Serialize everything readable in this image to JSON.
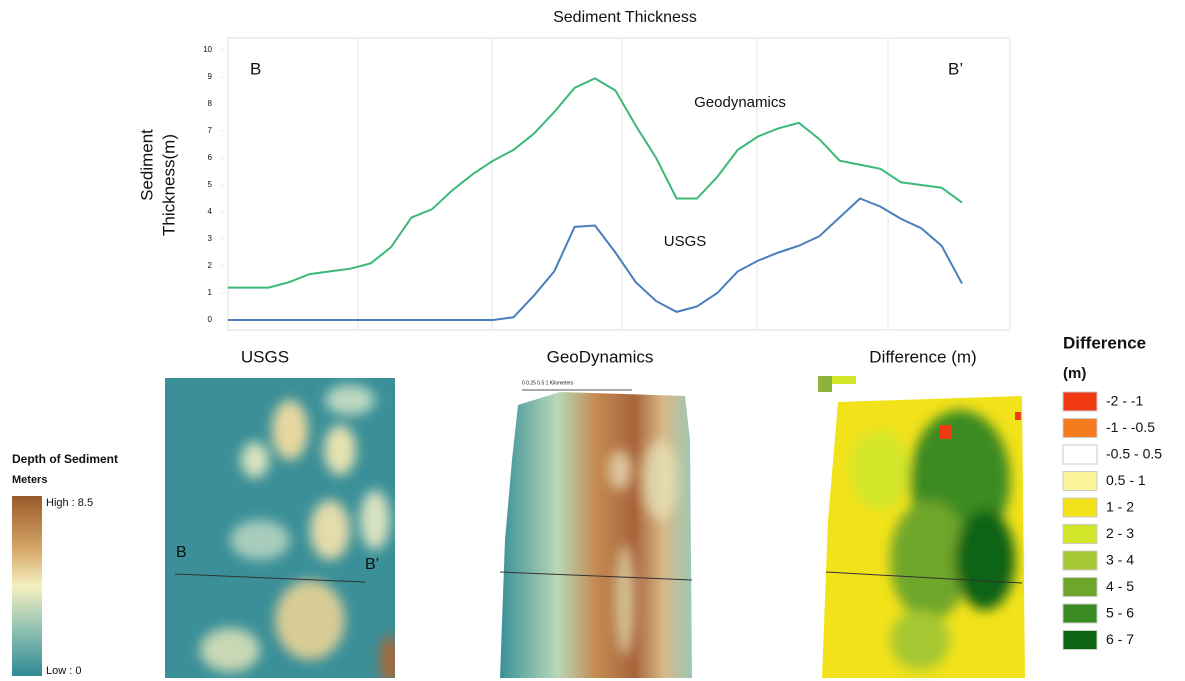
{
  "chart_data": {
    "type": "line",
    "title": "Sediment Thickness",
    "ylabel": [
      "Sediment",
      "Thickness(m)"
    ],
    "ylim": [
      0,
      10
    ],
    "yticks": [
      0,
      1,
      2,
      3,
      4,
      5,
      6,
      7,
      8,
      9,
      10
    ],
    "annotations": [
      "B",
      "B’"
    ],
    "series": [
      {
        "name": "Geodynamics",
        "color": "#3cb878",
        "values": [
          1.2,
          1.2,
          1.2,
          1.4,
          1.7,
          1.8,
          1.9,
          2.1,
          2.7,
          3.8,
          4.1,
          4.8,
          5.4,
          5.9,
          6.3,
          6.9,
          7.7,
          8.6,
          8.95,
          8.5,
          7.2,
          6.0,
          4.5,
          4.5,
          5.3,
          6.3,
          6.8,
          7.1,
          7.3,
          6.7,
          5.9,
          5.75,
          5.6,
          5.1,
          5.0,
          4.9,
          4.35
        ]
      },
      {
        "name": "USGS",
        "color": "#4a7ebb",
        "values": [
          0,
          0,
          0,
          0,
          0,
          0,
          0,
          0,
          0,
          0,
          0,
          0,
          0,
          0,
          0.1,
          0.9,
          1.8,
          3.45,
          3.5,
          2.5,
          1.4,
          0.7,
          0.3,
          0.5,
          1.0,
          1.8,
          2.2,
          2.5,
          2.75,
          3.1,
          3.8,
          4.5,
          4.2,
          3.75,
          3.4,
          2.75,
          1.35
        ]
      }
    ]
  },
  "maps": {
    "titles": [
      "USGS",
      "GeoDynamics",
      "Difference (m)"
    ],
    "section_labels": [
      "B",
      "B’"
    ],
    "scale_bar": "0   0.25  0.5        1 Kilometers"
  },
  "depth_legend": {
    "title": "Depth of Sediment",
    "unit": "Meters",
    "high": "High : 8.5",
    "low": "Low : 0"
  },
  "difference_legend": {
    "title": "Difference",
    "unit": "(m)",
    "items": [
      {
        "label": "-2 - -1",
        "color": "#f03a14"
      },
      {
        "label": "-1 - -0.5",
        "color": "#f57a1e"
      },
      {
        "label": "-0.5 - 0.5",
        "color": "#ffffff"
      },
      {
        "label": "0.5 - 1",
        "color": "#fbf59a"
      },
      {
        "label": "1 - 2",
        "color": "#f2e21a"
      },
      {
        "label": "2 - 3",
        "color": "#d3e62a"
      },
      {
        "label": "3 - 4",
        "color": "#a6c832"
      },
      {
        "label": "4 - 5",
        "color": "#6ea62a"
      },
      {
        "label": "5 - 6",
        "color": "#3a8a22"
      },
      {
        "label": "6 - 7",
        "color": "#0f6412"
      }
    ]
  }
}
